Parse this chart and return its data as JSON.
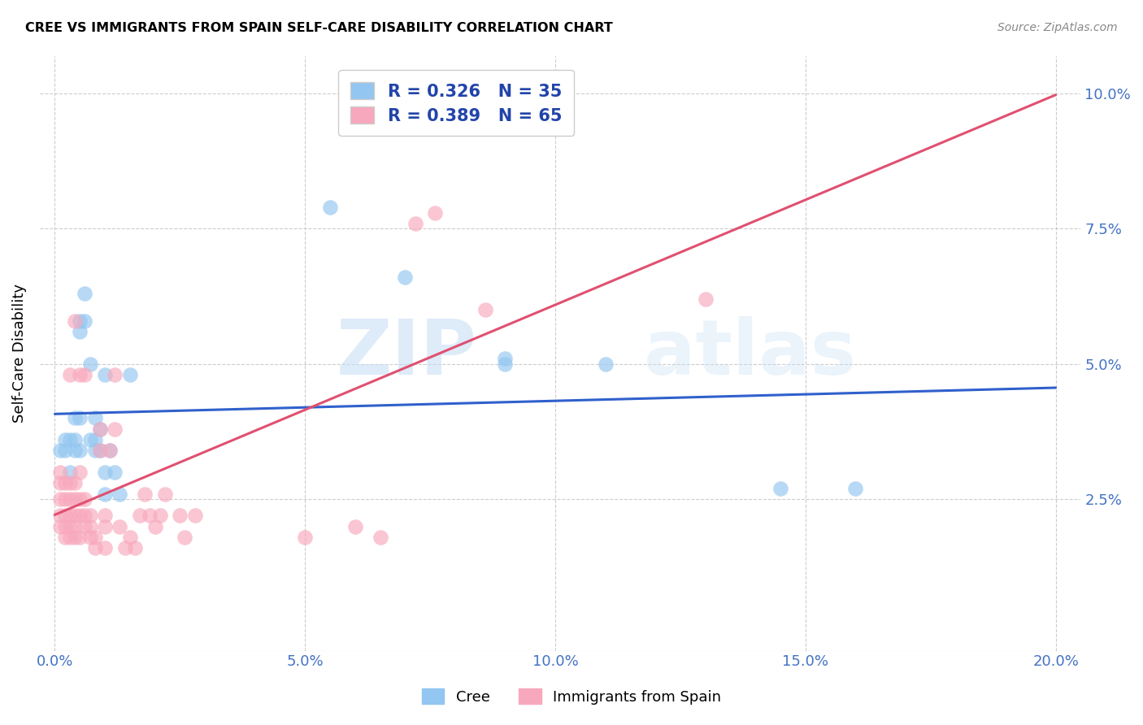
{
  "title": "CREE VS IMMIGRANTS FROM SPAIN SELF-CARE DISABILITY CORRELATION CHART",
  "source": "Source: ZipAtlas.com",
  "ylabel": "Self-Care Disability",
  "legend_label1": "Cree",
  "legend_label2": "Immigrants from Spain",
  "R1": "0.326",
  "N1": "35",
  "R2": "0.389",
  "N2": "65",
  "color_blue": "#93C6F0",
  "color_pink": "#F8A8BC",
  "line_color_blue": "#3060CC",
  "line_color_pink": "#E05070",
  "watermark_zip": "ZIP",
  "watermark_atlas": "atlas",
  "blue_points": [
    [
      0.001,
      0.034
    ],
    [
      0.002,
      0.034
    ],
    [
      0.002,
      0.036
    ],
    [
      0.003,
      0.03
    ],
    [
      0.003,
      0.036
    ],
    [
      0.004,
      0.034
    ],
    [
      0.004,
      0.036
    ],
    [
      0.004,
      0.04
    ],
    [
      0.005,
      0.034
    ],
    [
      0.005,
      0.04
    ],
    [
      0.005,
      0.056
    ],
    [
      0.005,
      0.058
    ],
    [
      0.006,
      0.058
    ],
    [
      0.006,
      0.063
    ],
    [
      0.007,
      0.036
    ],
    [
      0.007,
      0.05
    ],
    [
      0.008,
      0.034
    ],
    [
      0.008,
      0.036
    ],
    [
      0.008,
      0.04
    ],
    [
      0.009,
      0.034
    ],
    [
      0.009,
      0.038
    ],
    [
      0.01,
      0.048
    ],
    [
      0.01,
      0.03
    ],
    [
      0.01,
      0.026
    ],
    [
      0.011,
      0.034
    ],
    [
      0.012,
      0.03
    ],
    [
      0.013,
      0.026
    ],
    [
      0.015,
      0.048
    ],
    [
      0.055,
      0.079
    ],
    [
      0.07,
      0.066
    ],
    [
      0.09,
      0.05
    ],
    [
      0.09,
      0.051
    ],
    [
      0.11,
      0.05
    ],
    [
      0.145,
      0.027
    ],
    [
      0.16,
      0.027
    ]
  ],
  "pink_points": [
    [
      0.001,
      0.02
    ],
    [
      0.001,
      0.022
    ],
    [
      0.001,
      0.025
    ],
    [
      0.001,
      0.028
    ],
    [
      0.001,
      0.03
    ],
    [
      0.002,
      0.018
    ],
    [
      0.002,
      0.02
    ],
    [
      0.002,
      0.022
    ],
    [
      0.002,
      0.025
    ],
    [
      0.002,
      0.028
    ],
    [
      0.003,
      0.018
    ],
    [
      0.003,
      0.02
    ],
    [
      0.003,
      0.022
    ],
    [
      0.003,
      0.025
    ],
    [
      0.003,
      0.028
    ],
    [
      0.003,
      0.048
    ],
    [
      0.004,
      0.018
    ],
    [
      0.004,
      0.02
    ],
    [
      0.004,
      0.022
    ],
    [
      0.004,
      0.025
    ],
    [
      0.004,
      0.028
    ],
    [
      0.004,
      0.058
    ],
    [
      0.005,
      0.018
    ],
    [
      0.005,
      0.022
    ],
    [
      0.005,
      0.025
    ],
    [
      0.005,
      0.03
    ],
    [
      0.005,
      0.048
    ],
    [
      0.006,
      0.02
    ],
    [
      0.006,
      0.022
    ],
    [
      0.006,
      0.025
    ],
    [
      0.006,
      0.048
    ],
    [
      0.007,
      0.018
    ],
    [
      0.007,
      0.02
    ],
    [
      0.007,
      0.022
    ],
    [
      0.008,
      0.016
    ],
    [
      0.008,
      0.018
    ],
    [
      0.009,
      0.034
    ],
    [
      0.009,
      0.038
    ],
    [
      0.01,
      0.016
    ],
    [
      0.01,
      0.02
    ],
    [
      0.01,
      0.022
    ],
    [
      0.011,
      0.034
    ],
    [
      0.012,
      0.038
    ],
    [
      0.012,
      0.048
    ],
    [
      0.013,
      0.02
    ],
    [
      0.014,
      0.016
    ],
    [
      0.015,
      0.018
    ],
    [
      0.016,
      0.016
    ],
    [
      0.017,
      0.022
    ],
    [
      0.018,
      0.026
    ],
    [
      0.019,
      0.022
    ],
    [
      0.02,
      0.02
    ],
    [
      0.021,
      0.022
    ],
    [
      0.022,
      0.026
    ],
    [
      0.025,
      0.022
    ],
    [
      0.026,
      0.018
    ],
    [
      0.028,
      0.022
    ],
    [
      0.05,
      0.018
    ],
    [
      0.06,
      0.02
    ],
    [
      0.065,
      0.018
    ],
    [
      0.072,
      0.076
    ],
    [
      0.076,
      0.078
    ],
    [
      0.086,
      0.06
    ],
    [
      0.09,
      0.095
    ],
    [
      0.13,
      0.062
    ]
  ]
}
